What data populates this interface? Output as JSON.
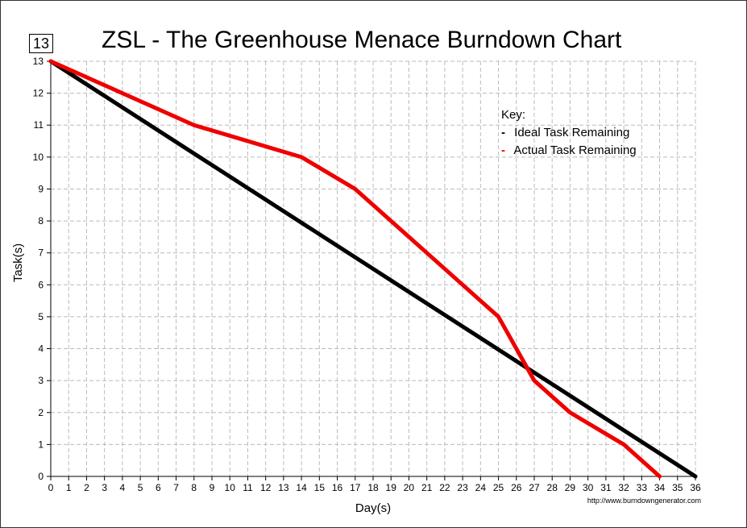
{
  "badge": "13",
  "chart_data": {
    "type": "line",
    "title": "ZSL - The Greenhouse Menace Burndown Chart",
    "xlabel": "Day(s)",
    "ylabel": "Task(s)",
    "xlim": [
      0,
      36
    ],
    "ylim": [
      0,
      13
    ],
    "grid": true,
    "legend_title": "Key:",
    "legend_position": "top-right",
    "series": [
      {
        "name": "Ideal Task Remaining",
        "color": "#000000",
        "points": [
          [
            0,
            13
          ],
          [
            36,
            0
          ]
        ]
      },
      {
        "name": "Actual Task Remaining",
        "color": "#ee0000",
        "points": [
          [
            0,
            13
          ],
          [
            4,
            12
          ],
          [
            8,
            11
          ],
          [
            14,
            10
          ],
          [
            17,
            9
          ],
          [
            19,
            8
          ],
          [
            21,
            7
          ],
          [
            23,
            6
          ],
          [
            25,
            5
          ],
          [
            27,
            3
          ],
          [
            29,
            2
          ],
          [
            32,
            1
          ],
          [
            34,
            0
          ]
        ]
      }
    ]
  },
  "credit": "http://www.burndowngenerator.com"
}
